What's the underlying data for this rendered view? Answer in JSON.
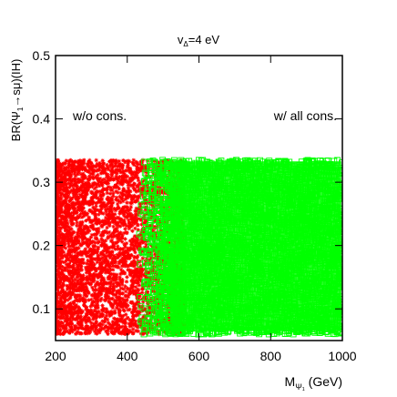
{
  "chart_data": {
    "type": "scatter",
    "title": "vΔ=4 eV",
    "title_main": "v",
    "title_sub": "Δ",
    "title_rest": "=4 eV",
    "xlabel_main": "M",
    "xlabel_sub": "Ψ₁",
    "xlabel_rest": " (GeV)",
    "ylabel_a": "BR(Ψ",
    "ylabel_sub": "1",
    "ylabel_b": "→sμ)(IH)",
    "xlim": [
      200,
      1000
    ],
    "ylim": [
      0.05,
      0.5
    ],
    "xticks": [
      200,
      400,
      600,
      800,
      1000
    ],
    "yticks": [
      0.1,
      0.2,
      0.3,
      0.4,
      0.5
    ],
    "xtick_labels": [
      "200",
      "400",
      "600",
      "800",
      "1000"
    ],
    "ytick_labels": [
      "0.1",
      "0.2",
      "0.3",
      "0.4",
      "0.5"
    ],
    "grid": false,
    "series": [
      {
        "name": "w/o cons.",
        "color": "#ff0000",
        "marker": "star",
        "x_range": [
          200,
          560
        ],
        "y_range": [
          0.06,
          0.335
        ]
      },
      {
        "name": "w/ all cons.",
        "color": "#00ff00",
        "marker": "open-square",
        "x_range": [
          430,
          1000
        ],
        "y_range": [
          0.06,
          0.335
        ]
      }
    ]
  }
}
